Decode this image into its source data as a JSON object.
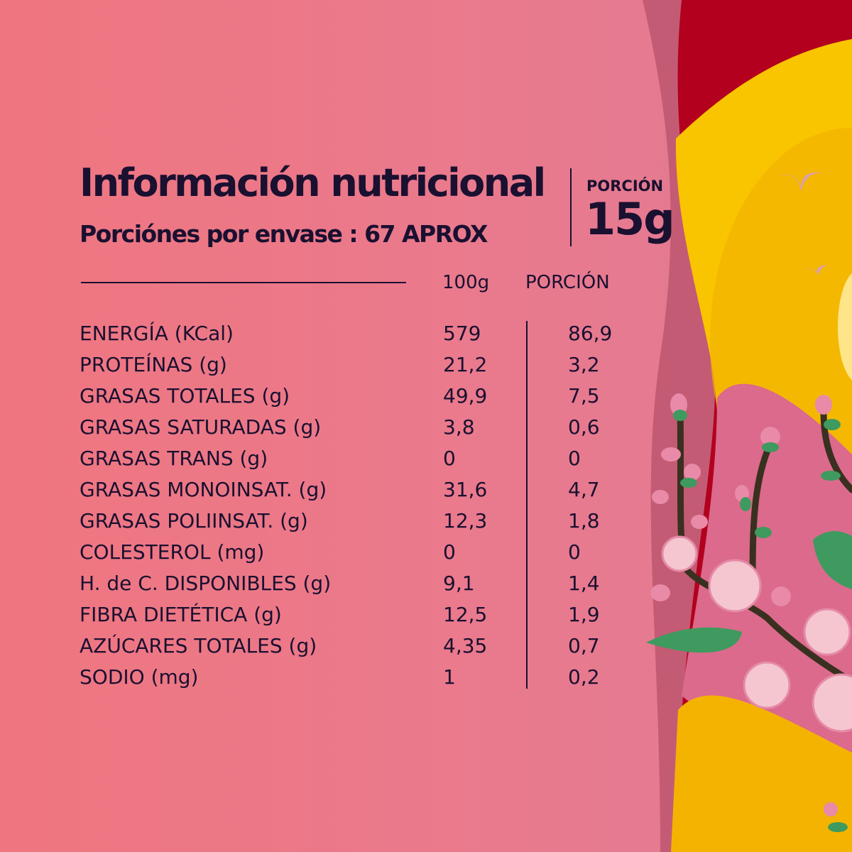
{
  "header": {
    "title": "Información nutricional",
    "servings": "Porciónes por envase :  67 APROX",
    "portion_label": "PORCIÓN",
    "portion_value": "15g"
  },
  "table": {
    "columns": [
      "100g",
      "PORCIÓN"
    ],
    "rows": [
      {
        "label": "ENERGÍA (KCal)",
        "per100": "579",
        "portion": "86,9"
      },
      {
        "label": "PROTEÍNAS (g)",
        "per100": "21,2",
        "portion": "3,2"
      },
      {
        "label": "GRASAS TOTALES (g)",
        "per100": "49,9",
        "portion": "7,5"
      },
      {
        "label": "GRASAS SATURADAS (g)",
        "per100": "3,8",
        "portion": "0,6"
      },
      {
        "label": "GRASAS TRANS (g)",
        "per100": "0",
        "portion": "0"
      },
      {
        "label": "GRASAS MONOINSAT. (g)",
        "per100": "31,6",
        "portion": "4,7"
      },
      {
        "label": "GRASAS POLIINSAT. (g)",
        "per100": "12,3",
        "portion": "1,8"
      },
      {
        "label": "COLESTEROL (mg)",
        "per100": "0",
        "portion": "0"
      },
      {
        "label": "H. de C. DISPONIBLES (g)",
        "per100": "9,1",
        "portion": "1,4"
      },
      {
        "label": "FIBRA DIETÉTICA (g)",
        "per100": "12,5",
        "portion": "1,9"
      },
      {
        "label": "AZÚCARES TOTALES (g)",
        "per100": "4,35",
        "portion": "0,7"
      },
      {
        "label": "SODIO (mg)",
        "per100": "1",
        "portion": "0,2"
      }
    ]
  },
  "colors": {
    "text": "#1a1030",
    "background": "#ef7680",
    "red": "#b3001e",
    "yellow": "#f9c400",
    "pink": "#db6a8c",
    "leaf": "#3e9a5e"
  },
  "decoration": "cherry-blossom-branch"
}
